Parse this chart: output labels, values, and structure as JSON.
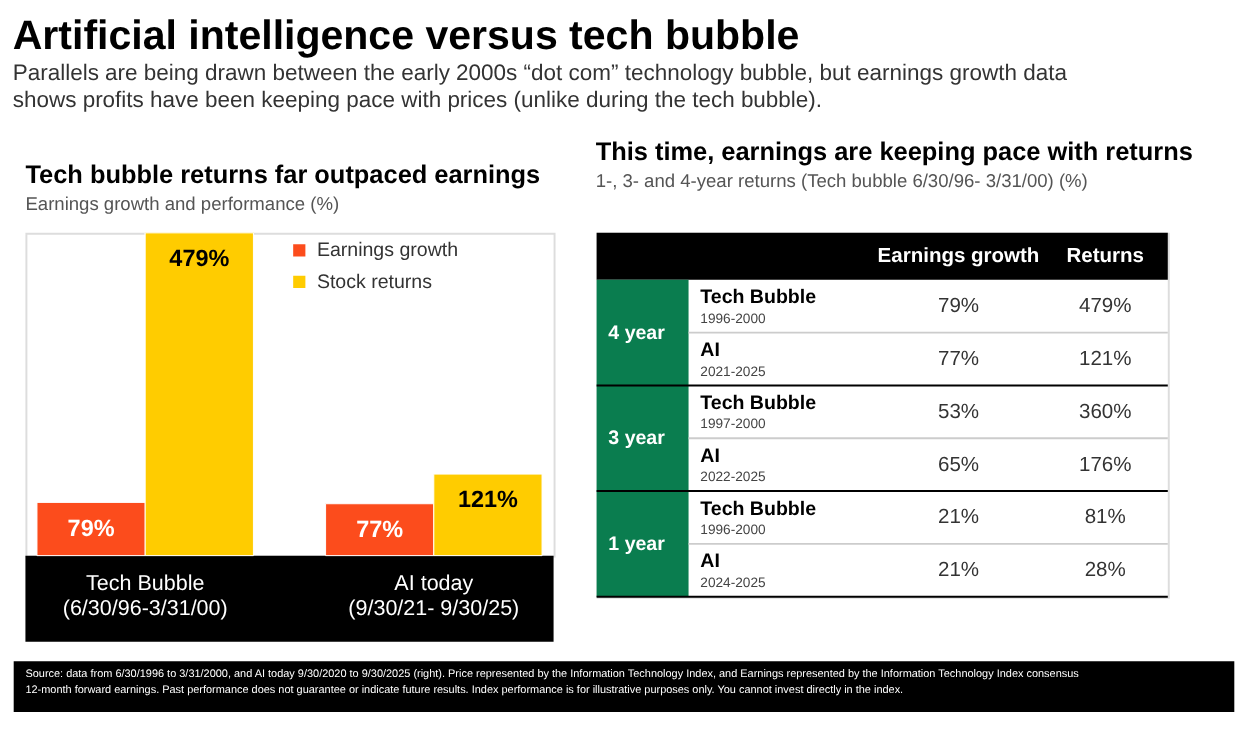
{
  "chart_data": [
    {
      "type": "other",
      "title": "Artificial intelligence versus tech bubble",
      "subtitle": "Parallels are being drawn between the early 2000s “dot com” technology bubble, but earnings growth data shows profits have been keeping pace with prices (unlike during the tech bubble)."
    },
    {
      "type": "bar",
      "title": "Tech bubble returns far outpaced earnings",
      "subtitle": "Earnings growth and performance (%)",
      "categories": [
        "Tech Bubble\n(6/30/96-3/31/00)",
        "AI today\n(9/30/21- 9/30/25)"
      ],
      "series": [
        {
          "name": "Earnings growth",
          "color": "#fc4c1c",
          "values": [
            79,
            77
          ],
          "value_labels": [
            "79%",
            "77%"
          ]
        },
        {
          "name": "Stock returns",
          "color": "#ffcc00",
          "values": [
            479,
            121
          ],
          "value_labels": [
            "479%",
            "121%"
          ]
        }
      ],
      "legend": "top right"
    },
    {
      "type": "other",
      "title": "This time, earnings are keeping pace with returns",
      "subtitle": "1-, 3- and 4-year returns (Tech bubble 6/30/96- 3/31/00) (%)",
      "annotations": [
        "Earnings growth",
        "Returns",
        "4 year",
        "Tech Bubble",
        "1996-2000",
        "79%",
        "479%",
        "AI",
        "2021-2025",
        "77%",
        "121%",
        "3 year",
        "Tech Bubble",
        "1997-2000",
        "53%",
        "360%",
        "AI",
        "2022-2025",
        "65%",
        "176%",
        "1 year",
        "Tech Bubble",
        "1996-2000",
        "21%",
        "81%",
        "AI",
        "2024-2025",
        "21%",
        "28%"
      ]
    },
    {
      "type": "other",
      "annotations": [
        "Source: data from 6/30/1996 to 3/31/2000, and AI today 9/30/2020 to 9/30/2025 (right). Price represented by the Information Technology Index, and Earnings represented by the Information Technology Index consensus 12-month forward earnings. Past performance does not guarantee or indicate future results. Index performance is for illustrative purposes only. You cannot invest directly in the index."
      ]
    }
  ]
}
